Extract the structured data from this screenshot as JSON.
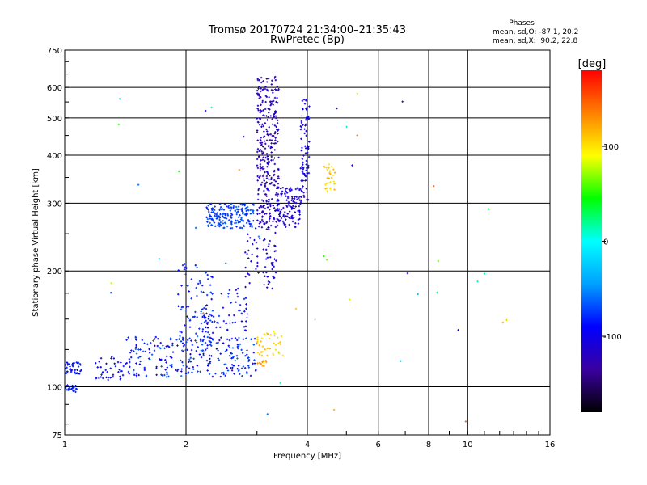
{
  "chart_data": {
    "type": "scatter",
    "title": "Tromsø 20170724 21:34:00–21:35:43",
    "subtitle": "RwPretec (Bp)",
    "xlabel": "Frequency [MHz]",
    "ylabel": "Stationary phase Virtual Height [km]",
    "x_scale": "log",
    "y_scale": "log",
    "xlim": [
      1,
      16
    ],
    "ylim": [
      75,
      750
    ],
    "x_ticks": [
      1,
      2,
      4,
      6,
      8,
      10,
      16
    ],
    "y_ticks": [
      75,
      100,
      200,
      300,
      400,
      500,
      600,
      750
    ],
    "grid": true,
    "phase_box": {
      "title": "Phases",
      "line_o": "mean, sd,O: -87.1, 20.2",
      "line_x": "mean, sd,X:  90.2, 22.8"
    },
    "colorbar": {
      "label": "[deg]",
      "range": [
        -180,
        180
      ],
      "ticks": [
        100,
        0,
        -100
      ],
      "colors": [
        "#000000",
        "#3a00a0",
        "#0000ff",
        "#00a0ff",
        "#00ffff",
        "#00ff00",
        "#ffff00",
        "#ff8000",
        "#ff0000"
      ]
    },
    "clusters": [
      {
        "name": "e-layer-a",
        "x": [
          1.0,
          1.11
        ],
        "y": [
          108,
          116
        ],
        "phase": [
          -95,
          -75
        ],
        "n": 40
      },
      {
        "name": "e-layer-b",
        "x": [
          1.0,
          1.08
        ],
        "y": [
          97,
          101
        ],
        "phase": [
          -95,
          -75
        ],
        "n": 25
      },
      {
        "name": "low-f-band",
        "x": [
          1.18,
          1.42
        ],
        "y": [
          104,
          122
        ],
        "phase": [
          -105,
          -80
        ],
        "n": 40
      },
      {
        "name": "f1-trace",
        "x": [
          1.42,
          3.0
        ],
        "y": [
          106,
          135
        ],
        "phase": [
          -110,
          -60
        ],
        "n": 260
      },
      {
        "name": "f1-rise",
        "x": [
          1.9,
          2.35
        ],
        "y": [
          130,
          210
        ],
        "phase": [
          -100,
          -65
        ],
        "n": 90
      },
      {
        "name": "f1-upper",
        "x": [
          2.2,
          2.85
        ],
        "y": [
          140,
          180
        ],
        "phase": [
          -110,
          -75
        ],
        "n": 60
      },
      {
        "name": "f2-low-o",
        "x": [
          2.25,
          2.95
        ],
        "y": [
          258,
          300
        ],
        "phase": [
          -85,
          -60
        ],
        "n": 180
      },
      {
        "name": "f2-cusp-o",
        "x": [
          2.8,
          3.35
        ],
        "y": [
          180,
          260
        ],
        "phase": [
          -120,
          -95
        ],
        "n": 70
      },
      {
        "name": "f2-main-o",
        "x": [
          3.0,
          3.4
        ],
        "y": [
          260,
          640
        ],
        "phase": [
          -135,
          -105
        ],
        "n": 320
      },
      {
        "name": "f2-x-band",
        "x": [
          3.35,
          3.85
        ],
        "y": [
          260,
          330
        ],
        "phase": [
          -125,
          -95
        ],
        "n": 120
      },
      {
        "name": "f2-x-rise",
        "x": [
          3.85,
          4.05
        ],
        "y": [
          300,
          560
        ],
        "phase": [
          -120,
          -90
        ],
        "n": 90
      },
      {
        "name": "yellow-patch-a",
        "x": [
          3.0,
          3.5
        ],
        "y": [
          120,
          140
        ],
        "phase": [
          95,
          120
        ],
        "n": 40
      },
      {
        "name": "yellow-patch-b",
        "x": [
          4.4,
          4.7
        ],
        "y": [
          320,
          380
        ],
        "phase": [
          95,
          120
        ],
        "n": 30
      },
      {
        "name": "yellow-patch-c",
        "x": [
          3.0,
          3.25
        ],
        "y": [
          113,
          117
        ],
        "phase": [
          100,
          140
        ],
        "n": 10
      },
      {
        "name": "sparse",
        "x": [
          1.3,
          12.5
        ],
        "y": [
          80,
          620
        ],
        "phase": [
          -140,
          150
        ],
        "n": 45
      }
    ]
  }
}
